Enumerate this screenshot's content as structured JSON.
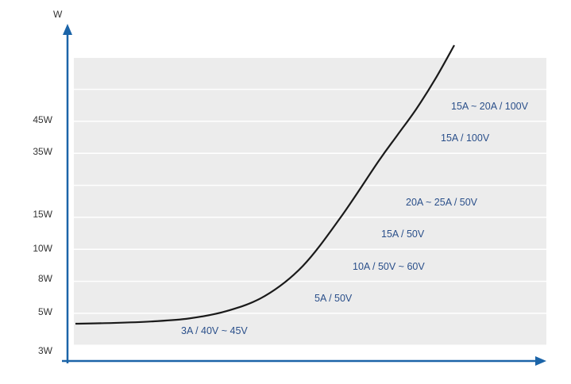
{
  "chart_data": {
    "type": "line",
    "ylabel": "W",
    "xlabel": "",
    "title": "",
    "grid": true,
    "y_ticks": [
      "3W",
      "5W",
      "8W",
      "10W",
      "15W",
      "35W",
      "45W"
    ],
    "series": [
      {
        "x": [
          0,
          0.1,
          0.2,
          0.3,
          0.4,
          0.5,
          0.6,
          0.7,
          0.8,
          0.85,
          0.9,
          0.95,
          1.0
        ],
        "y": [
          8,
          9,
          11,
          15,
          25,
          45,
          85,
          150,
          225,
          260,
          295,
          335,
          380
        ]
      }
    ],
    "annotations": [
      "3A / 40V ~ 45V",
      "5A / 50V",
      "10A / 50V ~ 60V",
      "15A / 50V",
      "20A ~ 25A / 50V",
      "15A / 100V",
      "15A ~ 20A / 100V"
    ]
  },
  "colors": {
    "axis": "#1b64a8",
    "curve": "#1a1a1a",
    "band": "#ececec",
    "annotation": "#2a4f8a"
  }
}
